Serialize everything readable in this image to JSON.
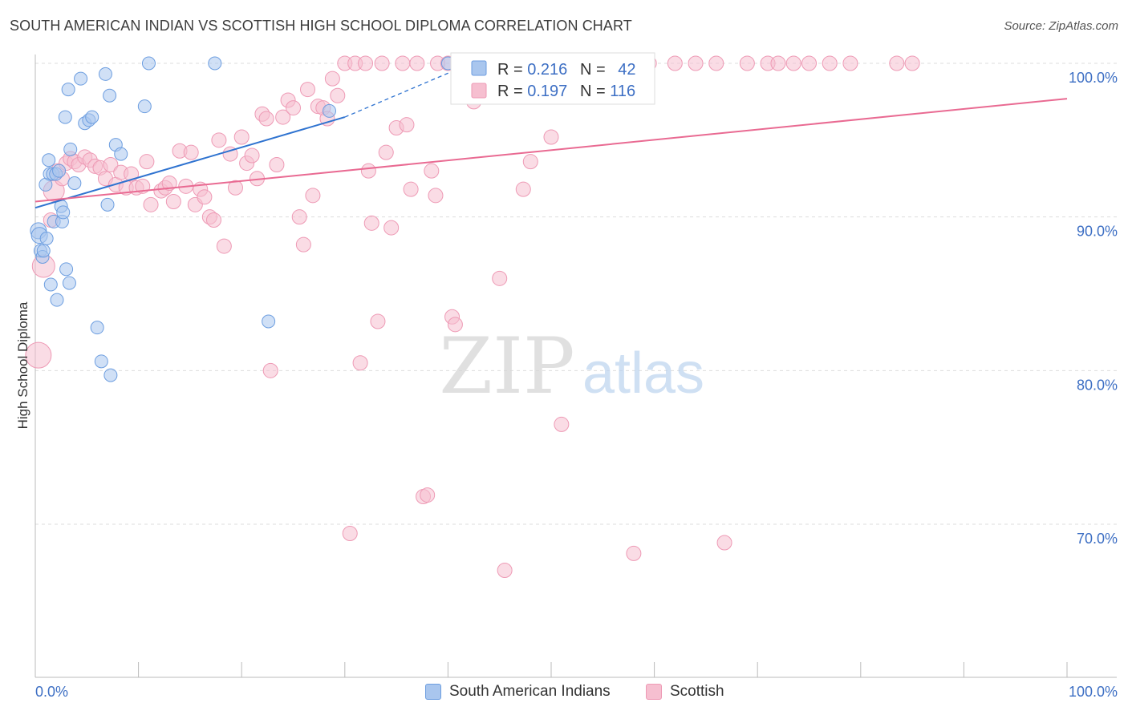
{
  "title": "SOUTH AMERICAN INDIAN VS SCOTTISH HIGH SCHOOL DIPLOMA CORRELATION CHART",
  "source": "Source: ZipAtlas.com",
  "watermark": {
    "zip": "ZIP",
    "atlas": "atlas"
  },
  "colors": {
    "blue_fill": "#a9c6ee",
    "blue_stroke": "#6d9ee0",
    "blue_line": "#2f73d0",
    "pink_fill": "#f6bfd0",
    "pink_stroke": "#ee9ab5",
    "pink_line": "#e96a92",
    "axis_text": "#3d6fc4",
    "grid": "#dddddd"
  },
  "legend_box": {
    "rows": [
      {
        "r_label": "R = ",
        "r_value": "0.216",
        "n_label": "N = ",
        "n_value": "42",
        "series": "blue"
      },
      {
        "r_label": "R = ",
        "r_value": "0.197",
        "n_label": "N = ",
        "n_value": "116",
        "series": "pink"
      }
    ]
  },
  "bottom_legend": [
    {
      "label": "South American Indians",
      "series": "blue"
    },
    {
      "label": "Scottish",
      "series": "pink"
    }
  ],
  "chart_data": {
    "type": "scatter",
    "title": "SOUTH AMERICAN INDIAN VS SCOTTISH HIGH SCHOOL DIPLOMA CORRELATION CHART",
    "ylabel": "High School Diploma",
    "xlabel": "",
    "xlim": [
      0,
      100
    ],
    "ylim": [
      60,
      100
    ],
    "x_tick_labels": [
      "0.0%",
      "100.0%"
    ],
    "y_ticks": [
      70,
      80,
      90,
      100
    ],
    "y_tick_labels": [
      "70.0%",
      "80.0%",
      "90.0%",
      "100.0%"
    ],
    "grid": true,
    "series": [
      {
        "name": "South American Indians",
        "color": "#6d9ee0",
        "R": 0.216,
        "N": 42,
        "trend": {
          "x": [
            0,
            30
          ],
          "y": [
            90.6,
            96.5
          ],
          "dashed_to": [
            40.5,
            99.5
          ]
        },
        "points": [
          [
            0.3,
            89.1
          ],
          [
            0.4,
            88.8
          ],
          [
            0.5,
            87.8
          ],
          [
            0.7,
            87.4
          ],
          [
            0.8,
            87.8
          ],
          [
            1.0,
            92.1
          ],
          [
            1.1,
            88.6
          ],
          [
            1.3,
            93.7
          ],
          [
            1.4,
            92.8
          ],
          [
            1.5,
            85.6
          ],
          [
            1.7,
            92.8
          ],
          [
            1.8,
            89.7
          ],
          [
            2.0,
            92.8
          ],
          [
            2.1,
            84.6
          ],
          [
            2.3,
            93.0
          ],
          [
            2.5,
            90.7
          ],
          [
            2.6,
            89.7
          ],
          [
            2.7,
            90.3
          ],
          [
            2.9,
            96.5
          ],
          [
            3.0,
            86.6
          ],
          [
            3.2,
            98.3
          ],
          [
            3.3,
            85.7
          ],
          [
            3.4,
            94.4
          ],
          [
            3.8,
            92.2
          ],
          [
            4.4,
            99.0
          ],
          [
            4.8,
            96.1
          ],
          [
            5.2,
            96.3
          ],
          [
            5.5,
            96.5
          ],
          [
            6.0,
            82.8
          ],
          [
            6.4,
            80.6
          ],
          [
            6.8,
            99.3
          ],
          [
            7.0,
            90.8
          ],
          [
            7.2,
            97.9
          ],
          [
            7.3,
            79.7
          ],
          [
            7.8,
            94.7
          ],
          [
            8.3,
            94.1
          ],
          [
            10.6,
            97.2
          ],
          [
            11.0,
            100.0
          ],
          [
            17.4,
            100.0
          ],
          [
            22.6,
            83.2
          ],
          [
            28.5,
            96.9
          ],
          [
            40.0,
            100.0
          ]
        ]
      },
      {
        "name": "Scottish",
        "color": "#ee9ab5",
        "R": 0.197,
        "N": 116,
        "trend": {
          "x": [
            0,
            100
          ],
          "y": [
            91.0,
            97.7
          ]
        },
        "points": [
          [
            0.3,
            81.0
          ],
          [
            0.8,
            86.8
          ],
          [
            1.5,
            89.8
          ],
          [
            1.8,
            91.7
          ],
          [
            2.2,
            93.0
          ],
          [
            2.6,
            92.5
          ],
          [
            3.0,
            93.5
          ],
          [
            3.4,
            93.8
          ],
          [
            3.8,
            93.6
          ],
          [
            4.2,
            93.4
          ],
          [
            4.8,
            93.9
          ],
          [
            5.3,
            93.7
          ],
          [
            5.8,
            93.3
          ],
          [
            6.3,
            93.2
          ],
          [
            6.8,
            92.5
          ],
          [
            7.3,
            93.4
          ],
          [
            7.8,
            92.1
          ],
          [
            8.3,
            92.9
          ],
          [
            8.8,
            91.9
          ],
          [
            9.3,
            92.8
          ],
          [
            9.8,
            91.9
          ],
          [
            10.4,
            92.0
          ],
          [
            10.8,
            93.6
          ],
          [
            11.2,
            90.8
          ],
          [
            12.2,
            91.7
          ],
          [
            12.6,
            91.9
          ],
          [
            13.0,
            92.2
          ],
          [
            13.4,
            91.0
          ],
          [
            14.0,
            94.3
          ],
          [
            14.6,
            92.0
          ],
          [
            15.1,
            94.2
          ],
          [
            15.5,
            90.8
          ],
          [
            16.0,
            91.8
          ],
          [
            16.4,
            91.3
          ],
          [
            16.9,
            90.0
          ],
          [
            17.3,
            89.8
          ],
          [
            17.8,
            95.0
          ],
          [
            18.3,
            88.1
          ],
          [
            18.9,
            94.1
          ],
          [
            19.4,
            91.9
          ],
          [
            20.0,
            95.2
          ],
          [
            20.5,
            93.5
          ],
          [
            21.0,
            94.0
          ],
          [
            21.5,
            92.5
          ],
          [
            22.0,
            96.7
          ],
          [
            22.4,
            96.4
          ],
          [
            22.8,
            80.0
          ],
          [
            23.4,
            93.4
          ],
          [
            24.0,
            96.5
          ],
          [
            24.5,
            97.6
          ],
          [
            25.0,
            97.1
          ],
          [
            25.6,
            90.0
          ],
          [
            26.0,
            88.2
          ],
          [
            26.4,
            98.3
          ],
          [
            26.9,
            91.4
          ],
          [
            27.4,
            97.2
          ],
          [
            27.9,
            97.1
          ],
          [
            28.3,
            96.4
          ],
          [
            28.8,
            99.0
          ],
          [
            29.3,
            97.9
          ],
          [
            30.0,
            100.0
          ],
          [
            30.5,
            69.4
          ],
          [
            31.0,
            100.0
          ],
          [
            31.5,
            80.5
          ],
          [
            32.0,
            100.0
          ],
          [
            32.3,
            93.0
          ],
          [
            32.6,
            89.6
          ],
          [
            33.2,
            83.2
          ],
          [
            33.6,
            100.0
          ],
          [
            34.0,
            94.2
          ],
          [
            34.5,
            89.3
          ],
          [
            35.0,
            95.8
          ],
          [
            35.6,
            100.0
          ],
          [
            36.0,
            96.0
          ],
          [
            36.4,
            91.8
          ],
          [
            37.0,
            100.0
          ],
          [
            37.6,
            71.8
          ],
          [
            38.0,
            71.9
          ],
          [
            38.4,
            93.0
          ],
          [
            38.8,
            91.4
          ],
          [
            39.0,
            100.0
          ],
          [
            40.0,
            100.0
          ],
          [
            40.4,
            83.5
          ],
          [
            40.7,
            83.0
          ],
          [
            41.0,
            100.0
          ],
          [
            42.0,
            100.0
          ],
          [
            42.5,
            97.5
          ],
          [
            43.2,
            100.0
          ],
          [
            44.0,
            100.0
          ],
          [
            45.0,
            86.0
          ],
          [
            45.5,
            67.0
          ],
          [
            46.0,
            100.0
          ],
          [
            46.5,
            100.0
          ],
          [
            47.3,
            91.8
          ],
          [
            48.0,
            93.6
          ],
          [
            49.0,
            100.0
          ],
          [
            50.0,
            95.2
          ],
          [
            51.0,
            76.5
          ],
          [
            52.0,
            100.0
          ],
          [
            53.0,
            100.0
          ],
          [
            55.0,
            100.0
          ],
          [
            58.0,
            68.1
          ],
          [
            59.5,
            100.0
          ],
          [
            62.0,
            100.0
          ],
          [
            64.0,
            100.0
          ],
          [
            66.0,
            100.0
          ],
          [
            66.8,
            68.8
          ],
          [
            69.0,
            100.0
          ],
          [
            71.0,
            100.0
          ],
          [
            72.0,
            100.0
          ],
          [
            73.5,
            100.0
          ],
          [
            75.0,
            100.0
          ],
          [
            77.0,
            100.0
          ],
          [
            79.0,
            100.0
          ],
          [
            83.5,
            100.0
          ],
          [
            85.0,
            100.0
          ]
        ]
      }
    ]
  }
}
